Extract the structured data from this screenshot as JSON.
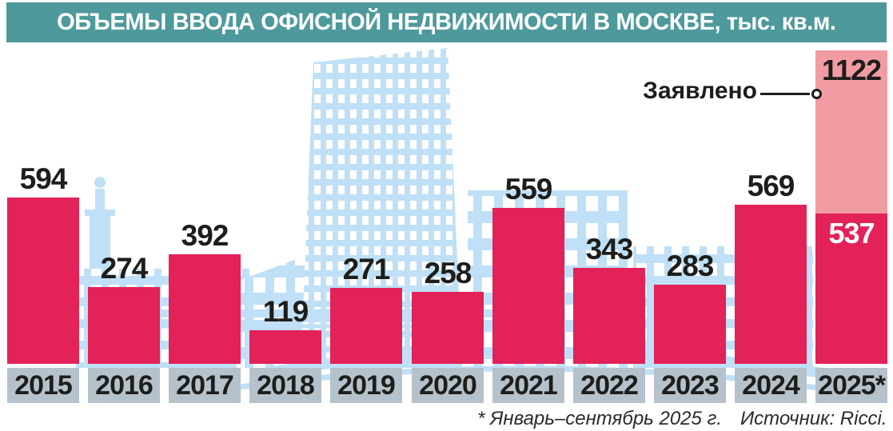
{
  "header": {
    "title": "ОБЪЕМЫ ВВОДА ОФИСНОЙ НЕДВИЖИМОСТИ В МОСКВЕ, тыс. кв.м."
  },
  "chart_data": {
    "type": "bar",
    "title": "ОБЪЕМЫ ВВОДА ОФИСНОЙ НЕДВИЖИМОСТИ В МОСКВЕ, тыс. кв.м.",
    "unit": "тыс. кв.м.",
    "categories": [
      "2015",
      "2016",
      "2017",
      "2018",
      "2019",
      "2020",
      "2021",
      "2022",
      "2023",
      "2024",
      "2025*"
    ],
    "values": [
      594,
      274,
      392,
      119,
      271,
      258,
      559,
      343,
      283,
      569,
      537
    ],
    "declared": {
      "category": "2025*",
      "value": 1122,
      "label": "Заявлено"
    },
    "ylim": [
      0,
      1122
    ],
    "xlabel": "",
    "ylabel": "тыс. кв.м.",
    "grid": false,
    "legend": "none"
  },
  "footnotes": {
    "period_note": "* Январь–сентябрь 2025 г.",
    "source": "Источник: Ricci."
  },
  "colors": {
    "header_bg": "#4d999b",
    "bar": "#e22259",
    "declared_bar": "#f19ca2",
    "year_box": "#b5c2cc",
    "illustration_blue": "#bfe0f6",
    "text_dark": "#1d1d1b",
    "value_on_bar": "#ffffff"
  }
}
